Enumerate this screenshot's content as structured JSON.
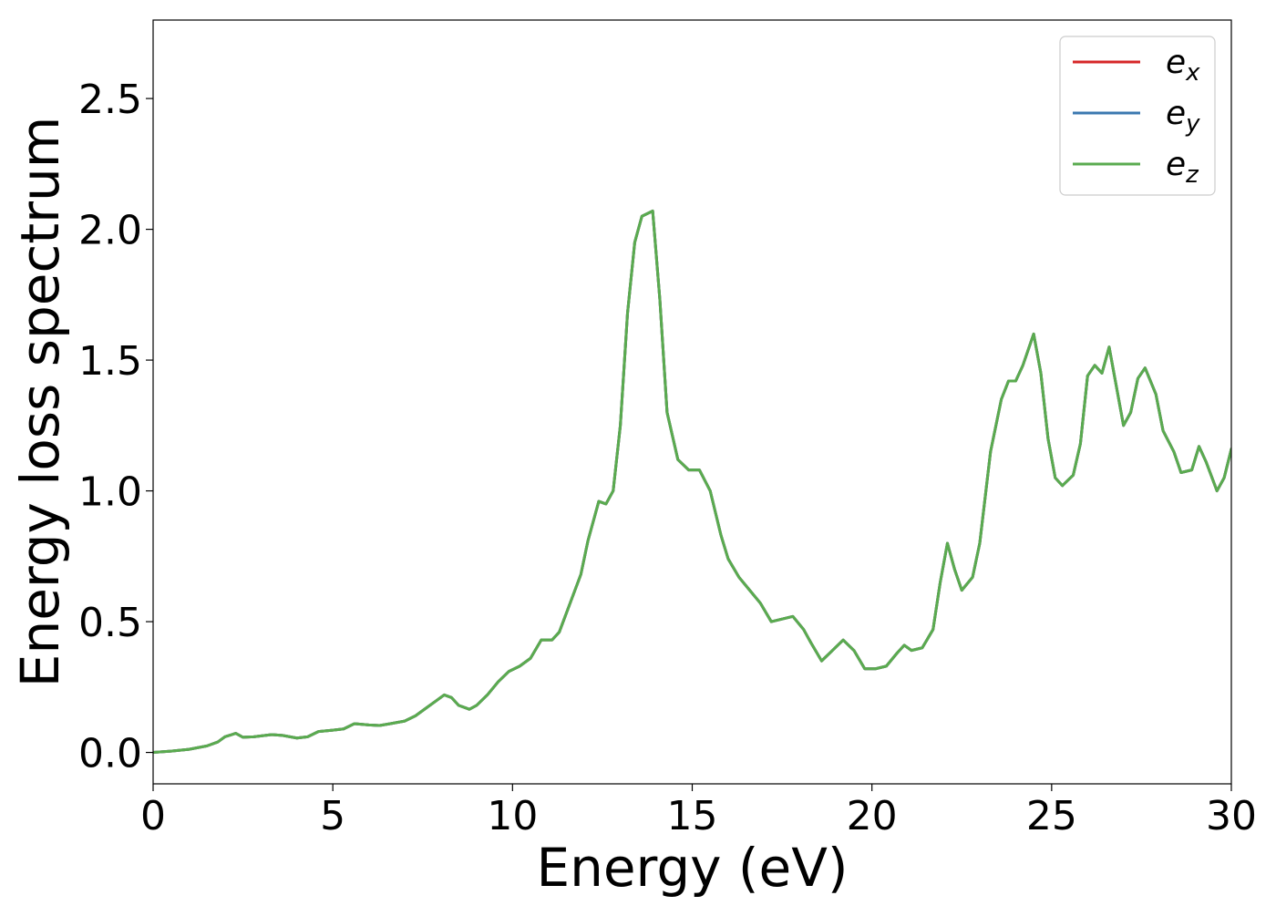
{
  "chart_data": {
    "type": "line",
    "xlabel": "Energy (eV)",
    "ylabel": "Energy loss spectrum",
    "xlim": [
      0,
      30
    ],
    "ylim": [
      -0.12,
      2.8
    ],
    "xticks": [
      0,
      5,
      10,
      15,
      20,
      25,
      30
    ],
    "yticks": [
      0.0,
      0.5,
      1.0,
      1.5,
      2.0,
      2.5
    ],
    "xtick_labels": [
      "0",
      "5",
      "10",
      "15",
      "20",
      "25",
      "30"
    ],
    "ytick_labels": [
      "0.0",
      "0.5",
      "1.0",
      "1.5",
      "2.0",
      "2.5"
    ],
    "grid": false,
    "legend_position": "top-right",
    "x": [
      0,
      0.5,
      1,
      1.5,
      1.8,
      2.0,
      2.3,
      2.5,
      2.8,
      3.3,
      3.6,
      4.0,
      4.3,
      4.6,
      5.0,
      5.3,
      5.6,
      6.0,
      6.3,
      6.6,
      7.0,
      7.3,
      7.6,
      7.9,
      8.1,
      8.3,
      8.5,
      8.8,
      9.0,
      9.3,
      9.6,
      9.9,
      10.2,
      10.5,
      10.8,
      11.1,
      11.3,
      11.6,
      11.9,
      12.1,
      12.4,
      12.6,
      12.8,
      13.0,
      13.2,
      13.4,
      13.6,
      13.9,
      14.1,
      14.3,
      14.6,
      14.9,
      15.2,
      15.5,
      15.8,
      16.0,
      16.3,
      16.6,
      16.9,
      17.2,
      17.5,
      17.8,
      18.1,
      18.3,
      18.6,
      18.9,
      19.2,
      19.5,
      19.8,
      20.1,
      20.4,
      20.7,
      20.9,
      21.1,
      21.4,
      21.7,
      21.9,
      22.1,
      22.3,
      22.5,
      22.8,
      23.0,
      23.3,
      23.6,
      23.8,
      24.0,
      24.2,
      24.5,
      24.7,
      24.9,
      25.1,
      25.3,
      25.6,
      25.8,
      26.0,
      26.2,
      26.4,
      26.6,
      26.8,
      27.0,
      27.2,
      27.4,
      27.6,
      27.9,
      28.1,
      28.4,
      28.6,
      28.9,
      29.1,
      29.3,
      29.6,
      29.8,
      30.0
    ],
    "series": [
      {
        "name": "e_x",
        "label": "e",
        "subscript": "x",
        "color": "#d62728",
        "y": [
          0,
          0.005,
          0.012,
          0.025,
          0.04,
          0.06,
          0.073,
          0.058,
          0.06,
          0.068,
          0.065,
          0.055,
          0.06,
          0.08,
          0.085,
          0.09,
          0.11,
          0.105,
          0.103,
          0.11,
          0.12,
          0.14,
          0.17,
          0.2,
          0.22,
          0.21,
          0.18,
          0.165,
          0.18,
          0.22,
          0.27,
          0.31,
          0.33,
          0.36,
          0.43,
          0.43,
          0.46,
          0.57,
          0.68,
          0.81,
          0.96,
          0.95,
          1.0,
          1.25,
          1.68,
          1.95,
          2.05,
          2.07,
          1.73,
          1.3,
          1.12,
          1.08,
          1.08,
          1.0,
          0.83,
          0.74,
          0.67,
          0.62,
          0.57,
          0.5,
          0.51,
          0.52,
          0.47,
          0.42,
          0.35,
          0.39,
          0.43,
          0.39,
          0.32,
          0.32,
          0.33,
          0.38,
          0.41,
          0.39,
          0.4,
          0.47,
          0.65,
          0.8,
          0.7,
          0.62,
          0.67,
          0.8,
          1.15,
          1.35,
          1.42,
          1.42,
          1.48,
          1.6,
          1.45,
          1.2,
          1.05,
          1.02,
          1.06,
          1.18,
          1.44,
          1.48,
          1.45,
          1.55,
          1.4,
          1.25,
          1.3,
          1.43,
          1.47,
          1.37,
          1.23,
          1.15,
          1.07,
          1.08,
          1.17,
          1.11,
          1.0,
          1.05,
          1.16
        ]
      },
      {
        "name": "e_y",
        "label": "e",
        "subscript": "y",
        "color": "#3b78b0",
        "y": [
          0,
          0.005,
          0.012,
          0.025,
          0.04,
          0.06,
          0.073,
          0.058,
          0.06,
          0.068,
          0.065,
          0.055,
          0.06,
          0.08,
          0.085,
          0.09,
          0.11,
          0.105,
          0.103,
          0.11,
          0.12,
          0.14,
          0.17,
          0.2,
          0.22,
          0.21,
          0.18,
          0.165,
          0.18,
          0.22,
          0.27,
          0.31,
          0.33,
          0.36,
          0.43,
          0.43,
          0.46,
          0.57,
          0.68,
          0.81,
          0.96,
          0.95,
          1.0,
          1.25,
          1.68,
          1.95,
          2.05,
          2.07,
          1.73,
          1.3,
          1.12,
          1.08,
          1.08,
          1.0,
          0.83,
          0.74,
          0.67,
          0.62,
          0.57,
          0.5,
          0.51,
          0.52,
          0.47,
          0.42,
          0.35,
          0.39,
          0.43,
          0.39,
          0.32,
          0.32,
          0.33,
          0.38,
          0.41,
          0.39,
          0.4,
          0.47,
          0.65,
          0.8,
          0.7,
          0.62,
          0.67,
          0.8,
          1.15,
          1.35,
          1.42,
          1.42,
          1.48,
          1.6,
          1.45,
          1.2,
          1.05,
          1.02,
          1.06,
          1.18,
          1.44,
          1.48,
          1.45,
          1.55,
          1.4,
          1.25,
          1.3,
          1.43,
          1.47,
          1.37,
          1.23,
          1.15,
          1.07,
          1.08,
          1.17,
          1.11,
          1.0,
          1.05,
          1.16
        ]
      },
      {
        "name": "e_z",
        "label": "e",
        "subscript": "z",
        "color": "#5aab4f",
        "y": [
          0,
          0.005,
          0.012,
          0.025,
          0.04,
          0.06,
          0.073,
          0.058,
          0.06,
          0.068,
          0.065,
          0.055,
          0.06,
          0.08,
          0.085,
          0.09,
          0.11,
          0.105,
          0.103,
          0.11,
          0.12,
          0.14,
          0.17,
          0.2,
          0.22,
          0.21,
          0.18,
          0.165,
          0.18,
          0.22,
          0.27,
          0.31,
          0.33,
          0.36,
          0.43,
          0.43,
          0.46,
          0.57,
          0.68,
          0.81,
          0.96,
          0.95,
          1.0,
          1.25,
          1.68,
          1.95,
          2.05,
          2.07,
          1.73,
          1.3,
          1.12,
          1.08,
          1.08,
          1.0,
          0.83,
          0.74,
          0.67,
          0.62,
          0.57,
          0.5,
          0.51,
          0.52,
          0.47,
          0.42,
          0.35,
          0.39,
          0.43,
          0.39,
          0.32,
          0.32,
          0.33,
          0.38,
          0.41,
          0.39,
          0.4,
          0.47,
          0.65,
          0.8,
          0.7,
          0.62,
          0.67,
          0.8,
          1.15,
          1.35,
          1.42,
          1.42,
          1.48,
          1.6,
          1.45,
          1.2,
          1.05,
          1.02,
          1.06,
          1.18,
          1.44,
          1.48,
          1.45,
          1.55,
          1.4,
          1.25,
          1.3,
          1.43,
          1.47,
          1.37,
          1.23,
          1.15,
          1.07,
          1.08,
          1.17,
          1.11,
          1.0,
          1.05,
          1.16
        ]
      }
    ]
  }
}
